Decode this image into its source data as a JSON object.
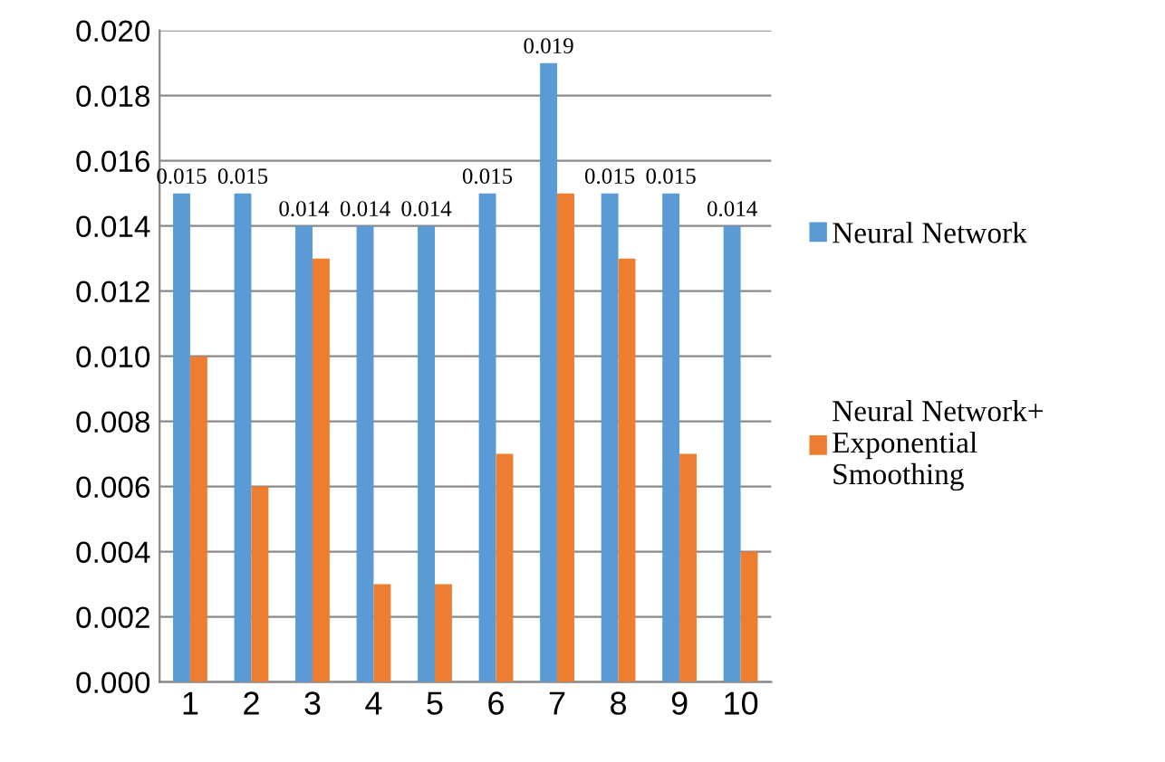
{
  "chart_data": {
    "type": "bar",
    "categories": [
      "1",
      "2",
      "3",
      "4",
      "5",
      "6",
      "7",
      "8",
      "9",
      "10"
    ],
    "series": [
      {
        "name": "Neural Network",
        "color": "#5b9bd5",
        "values": [
          0.015,
          0.015,
          0.014,
          0.014,
          0.014,
          0.015,
          0.019,
          0.015,
          0.015,
          0.014
        ],
        "value_labels": [
          "0.015",
          "0.015",
          "0.014",
          "0.014",
          "0.014",
          "0.015",
          "0.019",
          "0.015",
          "0.015",
          "0.014"
        ]
      },
      {
        "name": "Neural Network+\nExponential\nSmoothing",
        "color": "#ed7d31",
        "values": [
          0.01,
          0.006,
          0.013,
          0.003,
          0.003,
          0.007,
          0.015,
          0.013,
          0.007,
          0.004
        ]
      }
    ],
    "ylim": [
      0,
      0.02
    ],
    "yticks": [
      {
        "value": 0,
        "label": "0.000"
      },
      {
        "value": 0.002,
        "label": "0.002"
      },
      {
        "value": 0.004,
        "label": "0.004"
      },
      {
        "value": 0.006,
        "label": "0.006"
      },
      {
        "value": 0.008,
        "label": "0.008"
      },
      {
        "value": 0.01,
        "label": "0.010"
      },
      {
        "value": 0.012,
        "label": "0.012"
      },
      {
        "value": 0.014,
        "label": "0.014"
      },
      {
        "value": 0.016,
        "label": "0.016"
      },
      {
        "value": 0.018,
        "label": "0.018"
      },
      {
        "value": 0.02,
        "label": "0.020"
      }
    ],
    "grid": "y",
    "legend": "right"
  }
}
